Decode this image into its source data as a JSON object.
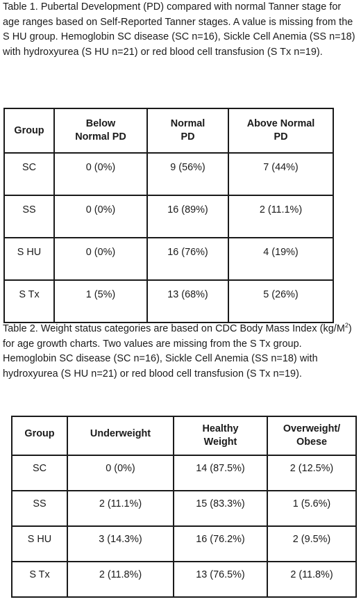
{
  "table1": {
    "caption": "Table 1. Pubertal Development (PD) compared with normal Tanner stage for age ranges based on Self-Reported Tanner stages. A value is missing from the S HU group. Hemoglobin SC disease (SC n=16), Sickle Cell Anemia (SS n=18) with hydroxyurea (S HU n=21) or red blood cell transfusion (S Tx n=19).",
    "headers": [
      {
        "line1": "Group",
        "line2": ""
      },
      {
        "line1": "Below",
        "line2": "Normal PD"
      },
      {
        "line1": "Normal",
        "line2": "PD"
      },
      {
        "line1": "Above Normal",
        "line2": "PD"
      }
    ],
    "rows": [
      [
        "SC",
        "0 (0%)",
        "9 (56%)",
        "7 (44%)"
      ],
      [
        "SS",
        "0 (0%)",
        "16 (89%)",
        "2 (11.1%)"
      ],
      [
        "S HU",
        "0 (0%)",
        "16 (76%)",
        "4 (19%)"
      ],
      [
        "S Tx",
        "1 (5%)",
        "13 (68%)",
        "5 (26%)"
      ]
    ]
  },
  "table2": {
    "caption_before_sup": "Table 2. Weight status categories are based on CDC Body Mass Index (kg/M",
    "caption_sup": "2",
    "caption_after_sup": ") for age growth charts. Two values are missing from the S Tx group. Hemoglobin SC disease (SC n=16), Sickle Cell Anemia (SS n=18) with hydroxyurea (S HU n=21) or red blood cell transfusion (S Tx n=19).",
    "headers": [
      {
        "line1": "Group",
        "line2": ""
      },
      {
        "line1": "Underweight",
        "line2": ""
      },
      {
        "line1": "Healthy",
        "line2": "Weight"
      },
      {
        "line1": "Overweight/",
        "line2": "Obese"
      }
    ],
    "rows": [
      [
        "SC",
        "0 (0%)",
        "14 (87.5%)",
        "2 (12.5%)"
      ],
      [
        "SS",
        "2 (11.1%)",
        "15 (83.3%)",
        "1 (5.6%)"
      ],
      [
        "S HU",
        "3 (14.3%)",
        "16 (76.2%)",
        "2 (9.5%)"
      ],
      [
        "S Tx",
        "2 (11.8%)",
        "13 (76.5%)",
        "2 (11.8%)"
      ]
    ]
  }
}
